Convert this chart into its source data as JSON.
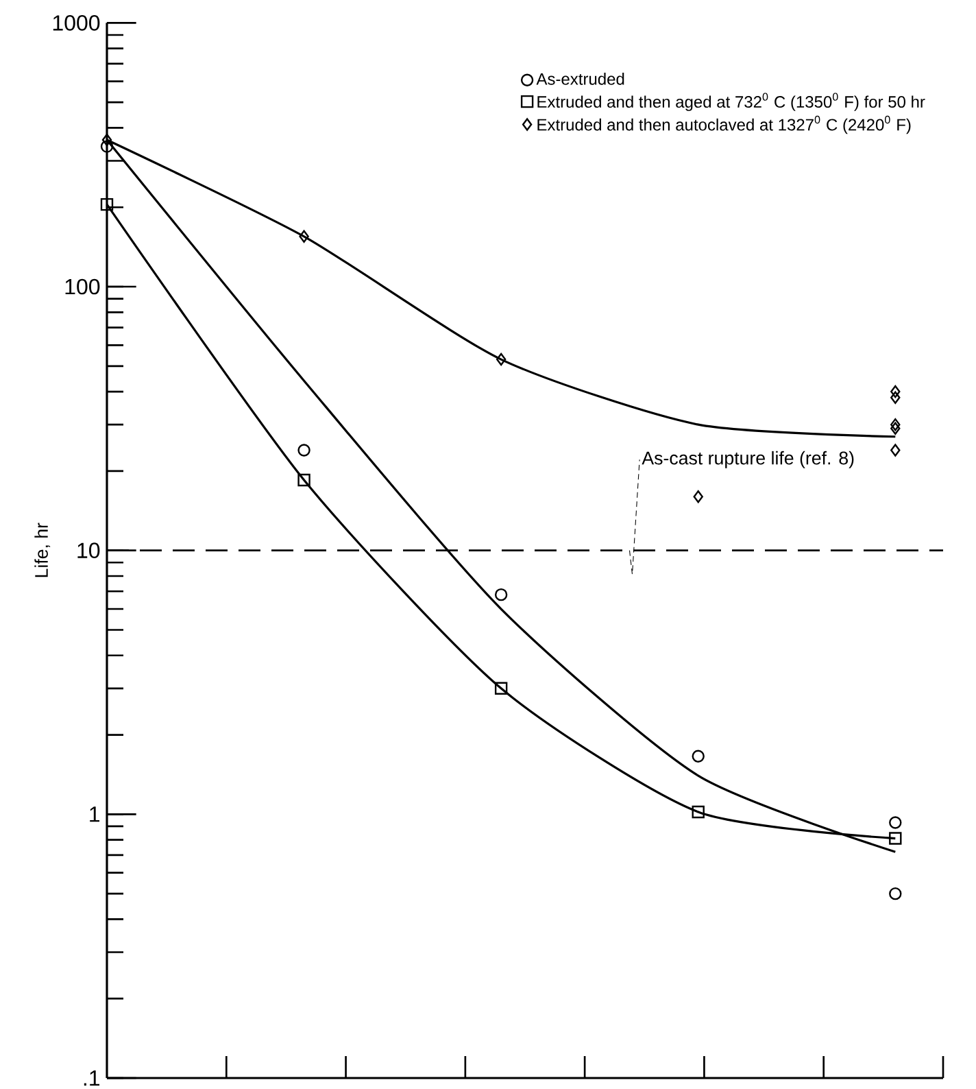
{
  "chart_data": {
    "type": "scatter",
    "ylabel": "Life, hr",
    "log": "y",
    "grid": false,
    "legend": "top right",
    "tick_labels": "y",
    "categories": [
      null,
      null,
      null,
      null,
      null
    ],
    "ylim": [
      0.1,
      1000
    ],
    "yticks": [
      {
        "value": 0.1,
        "label": ".1"
      },
      1,
      10,
      100,
      1000
    ],
    "ref_lines": [
      {
        "axis": "y",
        "value": 10,
        "label": "As-cast rupture life (ref. 8)",
        "line_style": "dashed",
        "color": "#000000"
      }
    ],
    "series": [
      {
        "name": "As-extruded",
        "marker": "circle",
        "color": "#000000",
        "values": [
          340,
          24,
          6.8,
          1.66,
          0.93
        ]
      },
      {
        "name": "Extruded and then aged at 732$^{0}$ C (1350$^{0}$ F) for 50 hr",
        "marker": "square",
        "color": "#000000",
        "values": [
          205,
          18.5,
          3.0,
          1.02,
          0.81
        ]
      },
      {
        "name": "Extruded and then autoclaved at 1327$^{0}$ C (2420$^{0}$ F)",
        "marker": "diamond",
        "color": "#000000",
        "values": [
          360,
          155,
          53,
          16,
          40
        ]
      },
      {
        "marker": "circle",
        "color": "#000000",
        "values": [
          null,
          null,
          null,
          null,
          0.5
        ]
      },
      {
        "marker": "diamond",
        "color": "#000000",
        "values": [
          null,
          null,
          null,
          null,
          38
        ]
      },
      {
        "marker": "diamond",
        "color": "#000000",
        "values": [
          null,
          null,
          null,
          null,
          30
        ]
      },
      {
        "marker": "diamond",
        "color": "#000000",
        "values": [
          null,
          null,
          null,
          null,
          29
        ]
      },
      {
        "marker": "diamond",
        "color": "#000000",
        "values": [
          null,
          null,
          null,
          null,
          24
        ]
      },
      {
        "type": "line",
        "marker": "none",
        "line_style": "solid",
        "color": "#000000",
        "values": [
          360,
          44,
          6.0,
          1.4,
          0.72
        ]
      },
      {
        "type": "line",
        "marker": "none",
        "line_style": "solid",
        "color": "#000000",
        "values": [
          205,
          18.5,
          3.0,
          1.02,
          0.81
        ]
      },
      {
        "type": "line",
        "marker": "none",
        "line_style": "solid",
        "color": "#000000",
        "values": [
          360,
          155,
          53,
          30,
          27
        ]
      }
    ]
  }
}
